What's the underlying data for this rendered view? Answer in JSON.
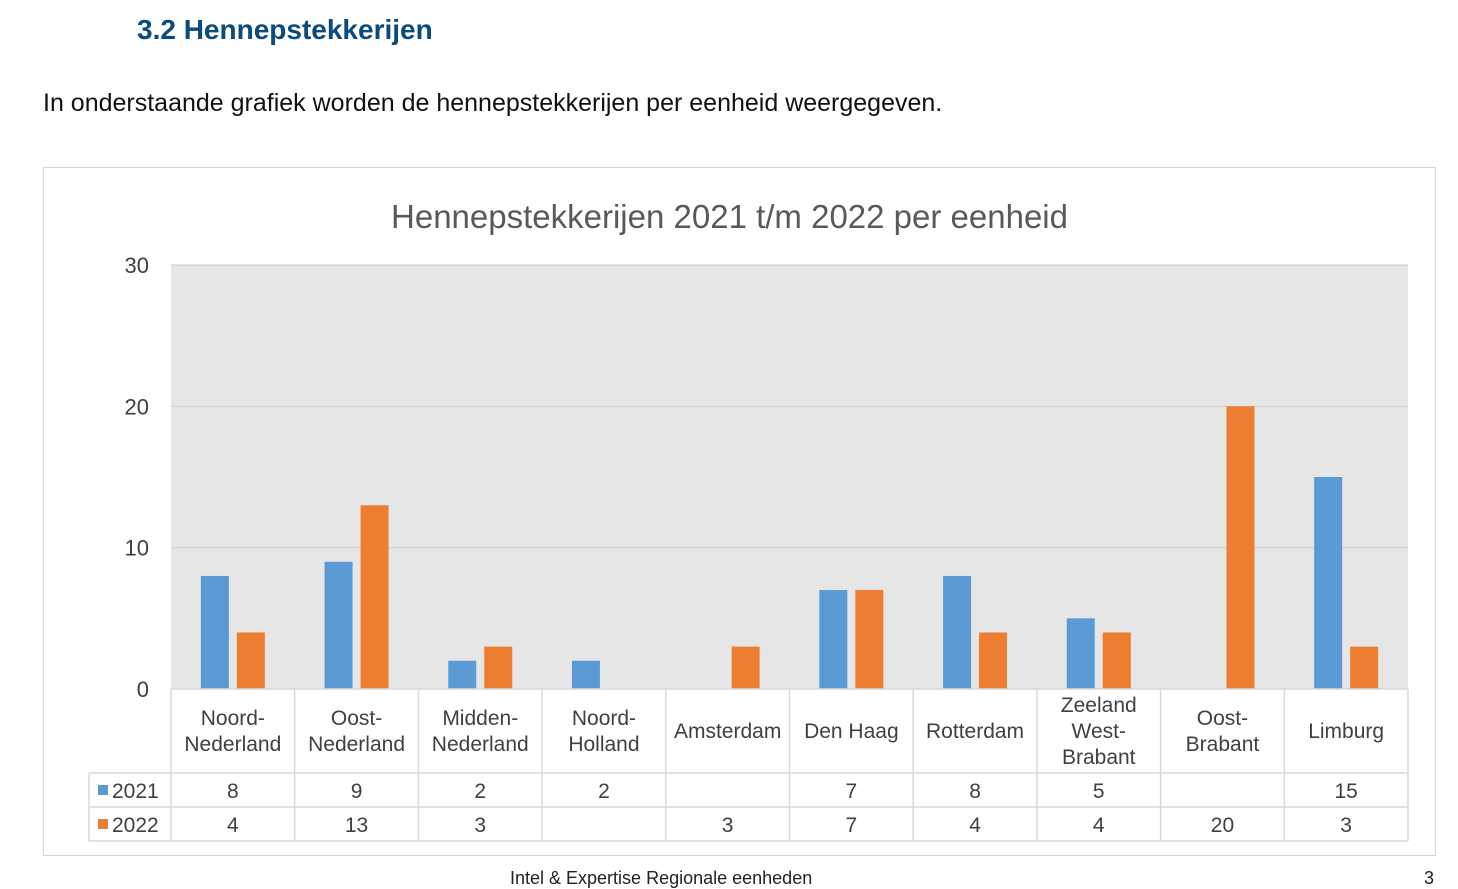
{
  "section": {
    "heading": "3.2 Hennepstekkerijen",
    "intro": "In onderstaande grafiek worden de hennepstekkerijen per eenheid weergegeven."
  },
  "footer": {
    "text": "Intel & Expertise Regionale eenheden",
    "page": "3"
  },
  "chart_data": {
    "type": "bar",
    "title": "Hennepstekkerijen 2021 t/m 2022 per eenheid",
    "xlabel": "",
    "ylabel": "",
    "ylim": [
      0,
      30
    ],
    "yticks": [
      0,
      10,
      20,
      30
    ],
    "grid": true,
    "legend": "data table rows (left)",
    "categories": [
      [
        "Noord-",
        "Nederland"
      ],
      [
        "Oost-",
        "Nederland"
      ],
      [
        "Midden-",
        "Nederland"
      ],
      [
        "Noord-",
        "Holland"
      ],
      [
        "Amsterdam"
      ],
      [
        "Den Haag"
      ],
      [
        "Rotterdam"
      ],
      [
        "Zeeland",
        "West-",
        "Brabant"
      ],
      [
        "Oost-",
        "Brabant"
      ],
      [
        "Limburg"
      ]
    ],
    "series": [
      {
        "name": "2021",
        "color": "#5b9bd5",
        "values": [
          8,
          9,
          2,
          2,
          null,
          7,
          8,
          5,
          null,
          15
        ]
      },
      {
        "name": "2022",
        "color": "#ed7d31",
        "values": [
          4,
          13,
          3,
          null,
          3,
          7,
          4,
          4,
          20,
          3
        ]
      }
    ],
    "colors": {
      "plot_bg": "#e7e6e6",
      "grid": "#d0d0d0",
      "table_border": "#d9d9d9",
      "text": "#404040"
    }
  }
}
